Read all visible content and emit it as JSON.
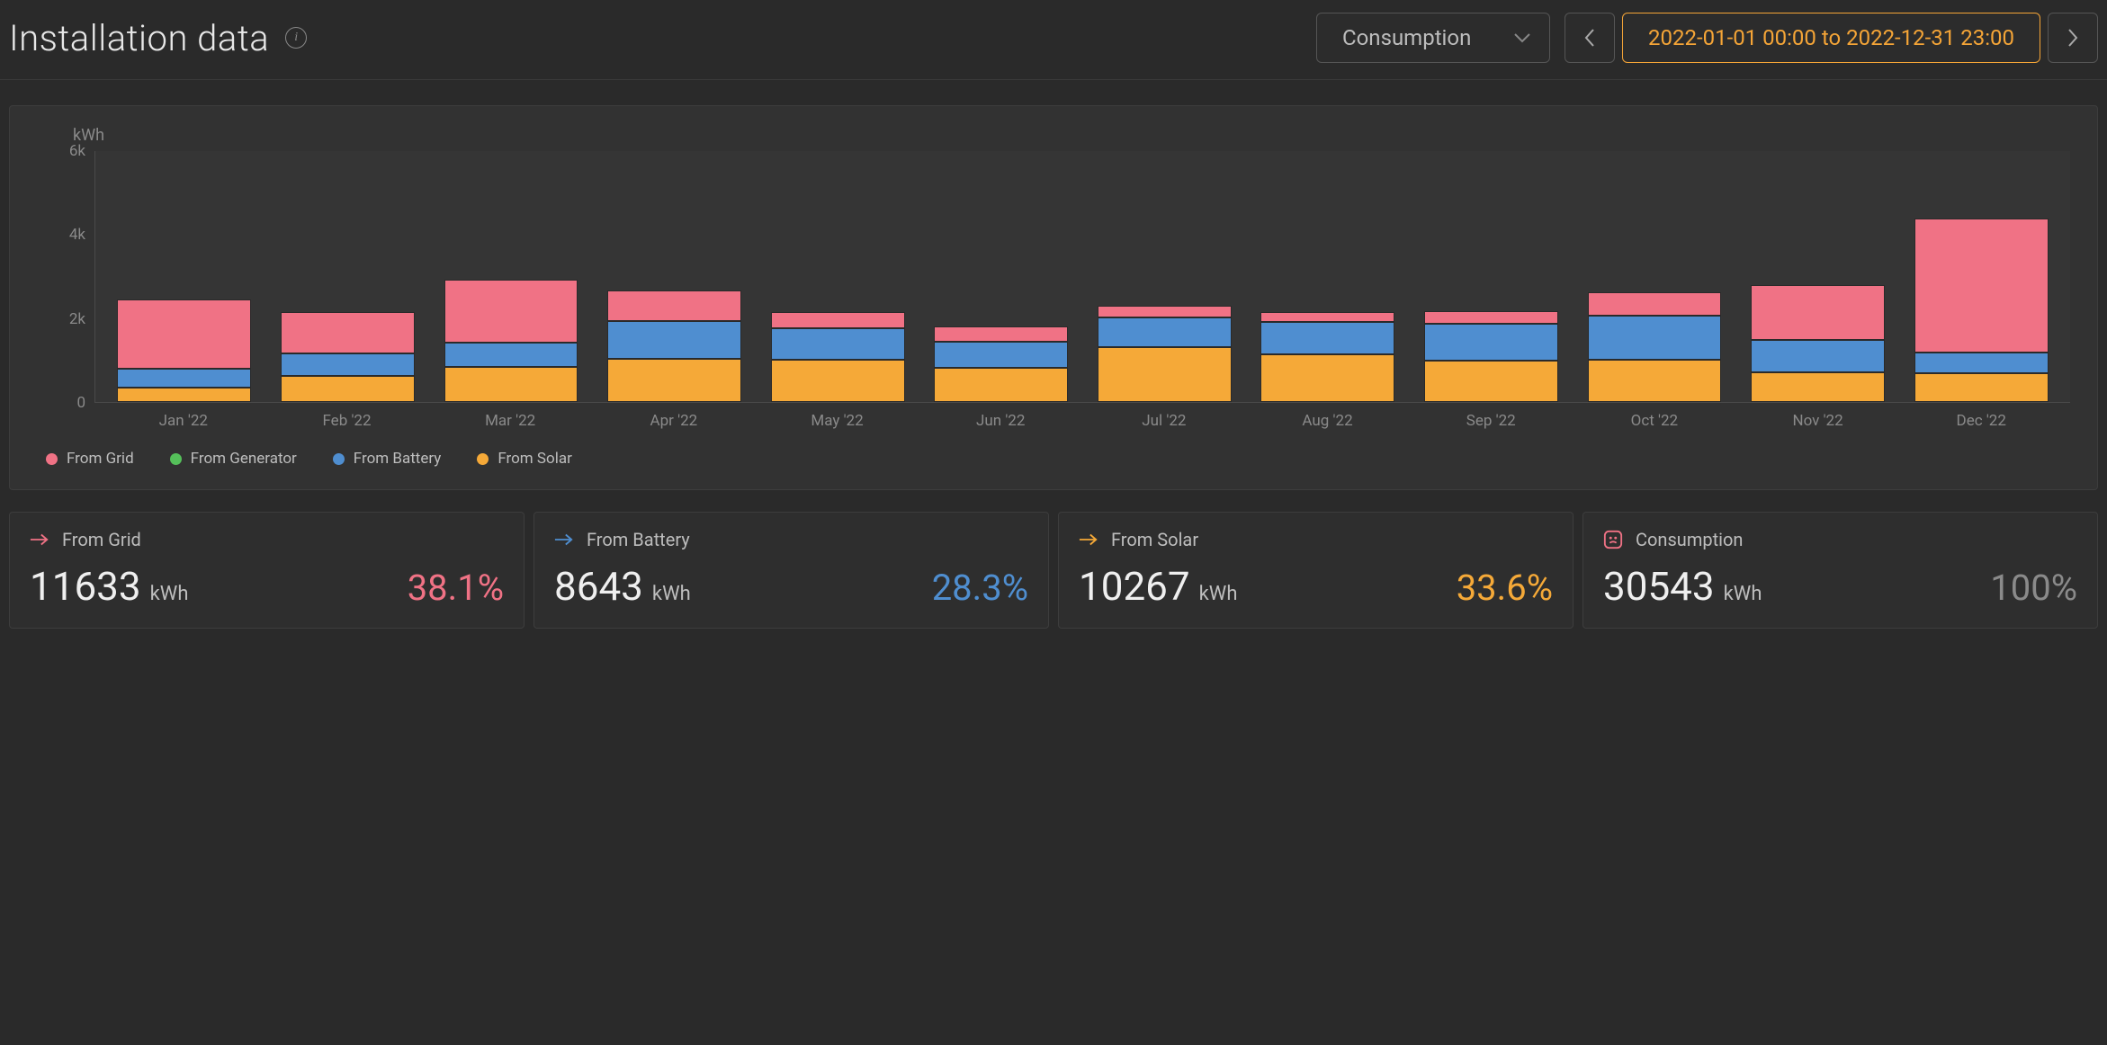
{
  "header": {
    "title": "Installation data",
    "dropdown": {
      "selected": "Consumption"
    },
    "date_range": "2022-01-01 00:00 to 2022-12-31 23:00"
  },
  "colors": {
    "grid": "#f07285",
    "generator": "#55c05a",
    "battery": "#4f8ed0",
    "solar": "#f5a938",
    "accent": "#f5a537",
    "text_muted": "#8a8a8a",
    "card_border": "#3d3d3d",
    "plot_bg": "#353535",
    "consumption_icon": "#f07285",
    "pct_muted": "#8a8a8a"
  },
  "chart": {
    "type": "stacked-bar",
    "y_unit_label": "kWh",
    "y_ticks": [
      "6k",
      "4k",
      "2k",
      "0"
    ],
    "y_max": 6000,
    "categories": [
      "Jan '22",
      "Feb '22",
      "Mar '22",
      "Apr '22",
      "May '22",
      "Jun '22",
      "Jul '22",
      "Aug '22",
      "Sep '22",
      "Oct '22",
      "Nov '22",
      "Dec '22"
    ],
    "series": [
      {
        "key": "solar",
        "label": "From Solar",
        "color": "#f5a938",
        "values": [
          350,
          620,
          830,
          1020,
          1010,
          820,
          1300,
          1140,
          980,
          1010,
          700,
          680
        ]
      },
      {
        "key": "battery",
        "label": "From Battery",
        "color": "#4f8ed0",
        "values": [
          450,
          540,
          590,
          910,
          740,
          620,
          720,
          760,
          890,
          1050,
          780,
          500
        ]
      },
      {
        "key": "generator",
        "label": "From Generator",
        "color": "#55c05a",
        "values": [
          0,
          0,
          0,
          0,
          0,
          0,
          0,
          0,
          0,
          0,
          0,
          0
        ]
      },
      {
        "key": "grid",
        "label": "From Grid",
        "color": "#f07285",
        "values": [
          1640,
          990,
          1490,
          720,
          400,
          360,
          280,
          240,
          300,
          560,
          1300,
          3200
        ]
      }
    ],
    "legend": [
      {
        "label": "From Grid",
        "color": "#f07285"
      },
      {
        "label": "From Generator",
        "color": "#55c05a"
      },
      {
        "label": "From Battery",
        "color": "#4f8ed0"
      },
      {
        "label": "From Solar",
        "color": "#f5a938"
      }
    ]
  },
  "cards": [
    {
      "key": "grid",
      "label": "From Grid",
      "icon": "arrow",
      "icon_color": "#f07285",
      "value": "11633",
      "unit": "kWh",
      "pct": "38.1%",
      "pct_color": "#f07285"
    },
    {
      "key": "battery",
      "label": "From Battery",
      "icon": "arrow",
      "icon_color": "#4f8ed0",
      "value": "8643",
      "unit": "kWh",
      "pct": "28.3%",
      "pct_color": "#4f8ed0"
    },
    {
      "key": "solar",
      "label": "From Solar",
      "icon": "arrow",
      "icon_color": "#f5a938",
      "value": "10267",
      "unit": "kWh",
      "pct": "33.6%",
      "pct_color": "#f5a938"
    },
    {
      "key": "consumption",
      "label": "Consumption",
      "icon": "consumption",
      "icon_color": "#f07285",
      "value": "30543",
      "unit": "kWh",
      "pct": "100%",
      "pct_color": "#8a8a8a"
    }
  ]
}
